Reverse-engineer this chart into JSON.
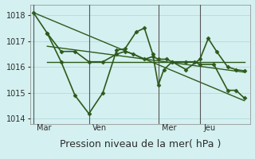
{
  "xlabel": "Pression niveau de la mer( hPa )",
  "background_color": "#d4f0f0",
  "line_color": "#2d5a1b",
  "grid_color": "#b8dede",
  "ylim": [
    1013.8,
    1018.4
  ],
  "yticks": [
    1014,
    1015,
    1016,
    1017,
    1018
  ],
  "xlim": [
    -0.1,
    7.8
  ],
  "day_labels": [
    "Mar",
    "Ven",
    "Mer",
    "Jeu"
  ],
  "vline_positions": [
    0.0,
    2.0,
    4.5,
    6.0
  ],
  "vline_color": "#555555",
  "series": [
    {
      "x": [
        0.0,
        0.5,
        1.0,
        1.5,
        2.0,
        2.5,
        3.0,
        3.3,
        3.7,
        4.0,
        4.3,
        4.5,
        4.7,
        5.0,
        5.5,
        6.0,
        6.3,
        6.6,
        7.0,
        7.3,
        7.6
      ],
      "y": [
        1018.1,
        1017.3,
        1016.2,
        1014.9,
        1014.2,
        1015.0,
        1016.65,
        1016.7,
        1017.35,
        1017.5,
        1016.5,
        1015.3,
        1015.9,
        1016.2,
        1015.9,
        1016.3,
        1017.1,
        1016.6,
        1016.0,
        1015.9,
        1015.85
      ],
      "marker": "D",
      "linewidth": 1.2,
      "markersize": 2.5
    },
    {
      "x": [
        0.5,
        1.0,
        1.5,
        2.0,
        2.5,
        3.0,
        3.3,
        3.6,
        4.0,
        4.3,
        4.5,
        4.8,
        5.0,
        5.5,
        5.8,
        6.0,
        6.5,
        7.0,
        7.3,
        7.6
      ],
      "y": [
        1017.3,
        1016.6,
        1016.6,
        1016.2,
        1016.2,
        1016.5,
        1016.6,
        1016.5,
        1016.3,
        1016.4,
        1016.3,
        1016.3,
        1016.2,
        1016.2,
        1016.2,
        1016.1,
        1016.1,
        1015.1,
        1015.1,
        1014.8
      ],
      "marker": "D",
      "linewidth": 1.2,
      "markersize": 2.5
    },
    {
      "x": [
        0.0,
        7.6
      ],
      "y": [
        1018.1,
        1014.7
      ],
      "marker": null,
      "linewidth": 1.0,
      "markersize": 0
    },
    {
      "x": [
        0.5,
        7.6
      ],
      "y": [
        1016.8,
        1015.8
      ],
      "marker": null,
      "linewidth": 1.0,
      "markersize": 0
    },
    {
      "x": [
        0.5,
        7.6
      ],
      "y": [
        1016.2,
        1016.2
      ],
      "marker": null,
      "linewidth": 1.0,
      "markersize": 0
    }
  ],
  "fontsize_xlabel": 9,
  "fontsize_ticks": 7,
  "fontsize_day": 7
}
